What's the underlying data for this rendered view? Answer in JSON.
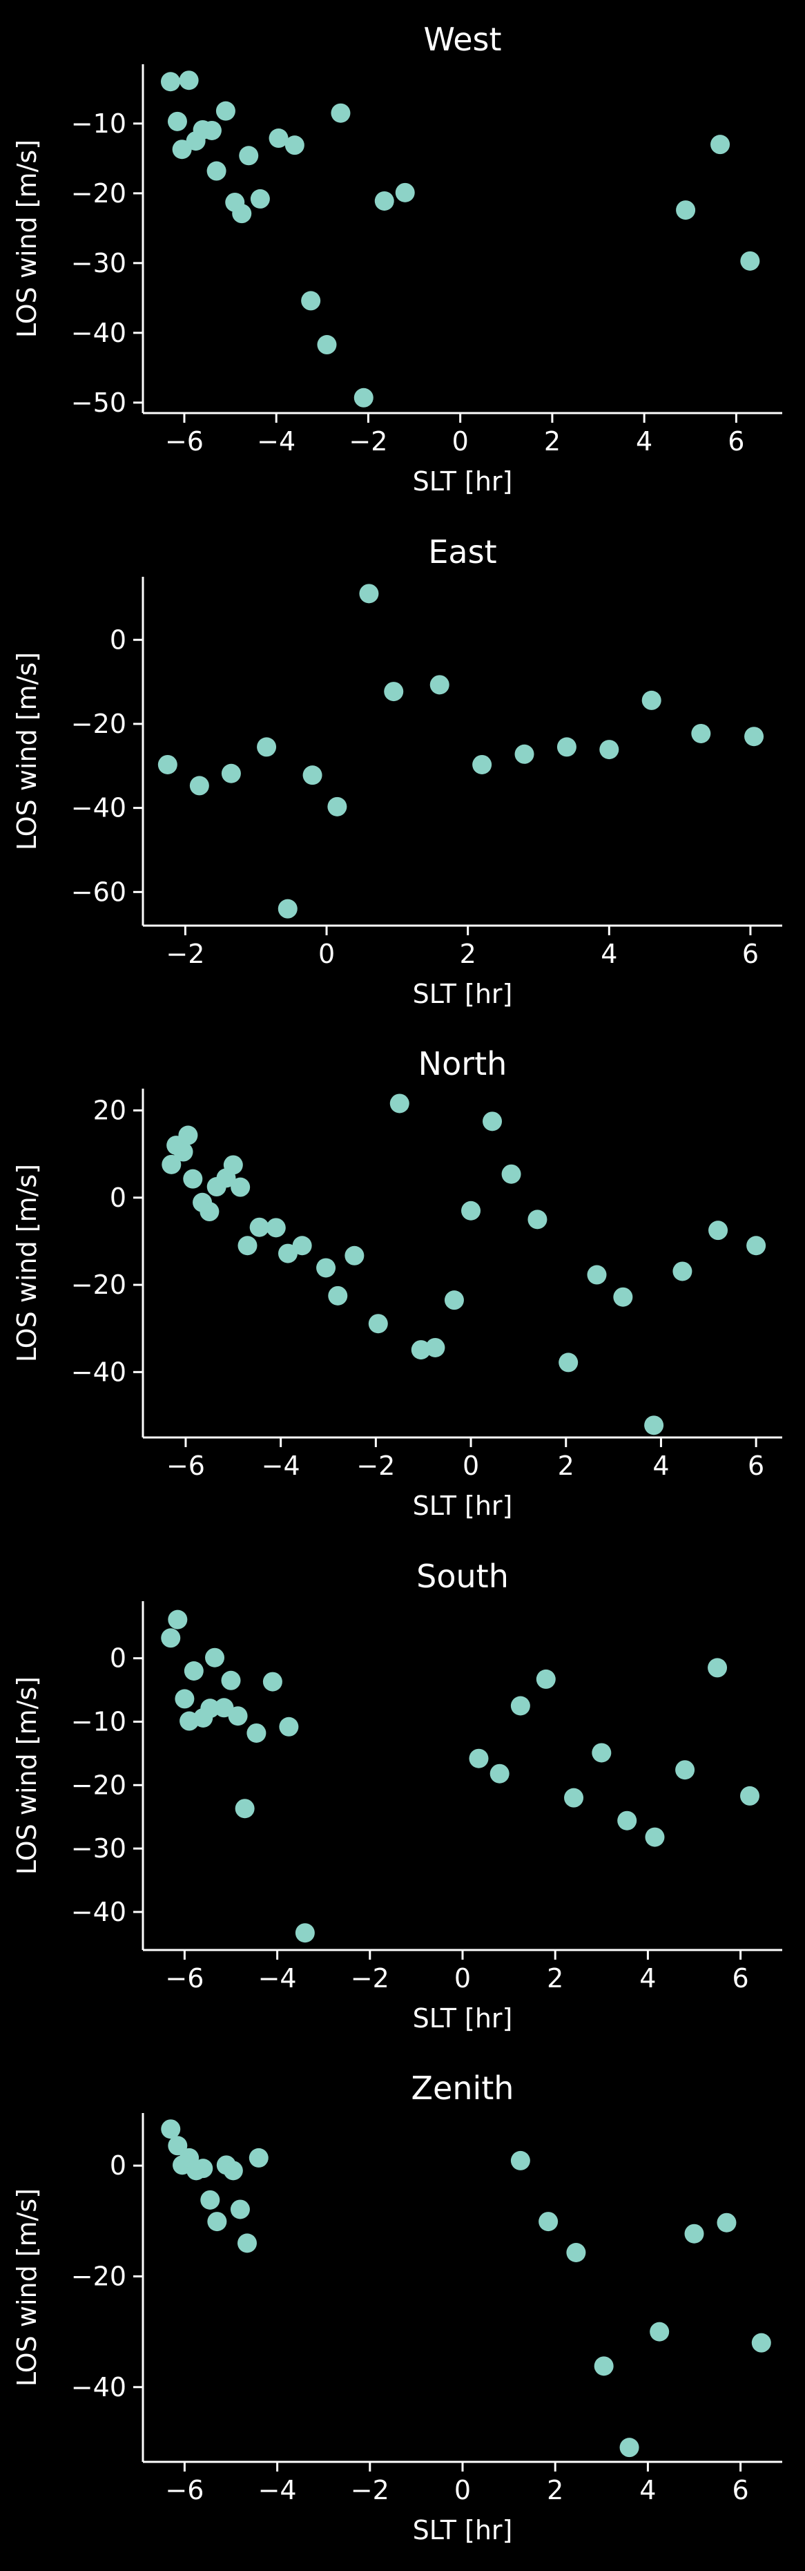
{
  "figure": {
    "background": "#000000",
    "foreground": "#ffffff",
    "marker_color": "#8dd3c7"
  },
  "chart_data": [
    {
      "type": "scatter",
      "title": "West",
      "xlabel": "SLT [hr]",
      "ylabel": "LOS wind [m/s]",
      "xlim": [
        -6.9,
        7.0
      ],
      "ylim": [
        -51.5,
        -1.5
      ],
      "xticks": [
        -6,
        -4,
        -2,
        0,
        2,
        4,
        6
      ],
      "yticks": [
        -10,
        -20,
        -30,
        -40,
        -50
      ],
      "grid": false,
      "points": [
        {
          "x": -6.3,
          "y": -4.0
        },
        {
          "x": -5.9,
          "y": -3.8
        },
        {
          "x": -6.15,
          "y": -9.7
        },
        {
          "x": -6.05,
          "y": -13.7
        },
        {
          "x": -5.75,
          "y": -12.5
        },
        {
          "x": -5.6,
          "y": -10.9
        },
        {
          "x": -5.4,
          "y": -11.0
        },
        {
          "x": -5.3,
          "y": -16.8
        },
        {
          "x": -5.1,
          "y": -8.2
        },
        {
          "x": -4.9,
          "y": -21.3
        },
        {
          "x": -4.75,
          "y": -22.9
        },
        {
          "x": -4.6,
          "y": -14.6
        },
        {
          "x": -4.35,
          "y": -20.8
        },
        {
          "x": -3.95,
          "y": -12.1
        },
        {
          "x": -3.6,
          "y": -13.1
        },
        {
          "x": -3.25,
          "y": -35.4
        },
        {
          "x": -2.9,
          "y": -41.7
        },
        {
          "x": -2.6,
          "y": -8.5
        },
        {
          "x": -2.1,
          "y": -49.3
        },
        {
          "x": -1.65,
          "y": -21.1
        },
        {
          "x": -1.2,
          "y": -19.9
        },
        {
          "x": 4.9,
          "y": -22.4
        },
        {
          "x": 5.65,
          "y": -13.0
        },
        {
          "x": 6.3,
          "y": -29.7
        }
      ]
    },
    {
      "type": "scatter",
      "title": "East",
      "xlabel": "SLT [hr]",
      "ylabel": "LOS wind [m/s]",
      "xlim": [
        -2.6,
        6.45
      ],
      "ylim": [
        -68,
        15
      ],
      "xticks": [
        -2,
        0,
        2,
        4,
        6
      ],
      "yticks": [
        0,
        -20,
        -40,
        -60
      ],
      "grid": false,
      "points": [
        {
          "x": -2.25,
          "y": -29.7
        },
        {
          "x": -1.8,
          "y": -34.7
        },
        {
          "x": -1.35,
          "y": -31.8
        },
        {
          "x": -0.85,
          "y": -25.5
        },
        {
          "x": -0.55,
          "y": -64.0
        },
        {
          "x": -0.2,
          "y": -32.2
        },
        {
          "x": 0.15,
          "y": -39.7
        },
        {
          "x": 0.6,
          "y": 11.0
        },
        {
          "x": 0.95,
          "y": -12.3
        },
        {
          "x": 1.6,
          "y": -10.7
        },
        {
          "x": 2.2,
          "y": -29.7
        },
        {
          "x": 2.8,
          "y": -27.2
        },
        {
          "x": 3.4,
          "y": -25.5
        },
        {
          "x": 4.0,
          "y": -26.1
        },
        {
          "x": 4.6,
          "y": -14.4
        },
        {
          "x": 5.3,
          "y": -22.3
        },
        {
          "x": 6.05,
          "y": -23.0
        }
      ]
    },
    {
      "type": "scatter",
      "title": "North",
      "xlabel": "SLT [hr]",
      "ylabel": "LOS wind [m/s]",
      "xlim": [
        -6.9,
        6.55
      ],
      "ylim": [
        -55,
        25
      ],
      "xticks": [
        -6,
        -4,
        -2,
        0,
        2,
        4,
        6
      ],
      "yticks": [
        20,
        0,
        -20,
        -40
      ],
      "grid": false,
      "points": [
        {
          "x": -6.3,
          "y": 7.6
        },
        {
          "x": -6.2,
          "y": 12.0
        },
        {
          "x": -6.05,
          "y": 10.5
        },
        {
          "x": -5.95,
          "y": 14.3
        },
        {
          "x": -5.85,
          "y": 4.3
        },
        {
          "x": -5.65,
          "y": -1.1
        },
        {
          "x": -5.5,
          "y": -3.2
        },
        {
          "x": -5.35,
          "y": 2.5
        },
        {
          "x": -5.15,
          "y": 4.5
        },
        {
          "x": -5.0,
          "y": 7.5
        },
        {
          "x": -4.85,
          "y": 2.4
        },
        {
          "x": -4.7,
          "y": -11.0
        },
        {
          "x": -4.45,
          "y": -6.8
        },
        {
          "x": -4.1,
          "y": -6.9
        },
        {
          "x": -3.85,
          "y": -12.8
        },
        {
          "x": -3.55,
          "y": -11.0
        },
        {
          "x": -3.05,
          "y": -16.1
        },
        {
          "x": -2.8,
          "y": -22.5
        },
        {
          "x": -2.45,
          "y": -13.3
        },
        {
          "x": -1.95,
          "y": -28.9
        },
        {
          "x": -1.5,
          "y": 21.6
        },
        {
          "x": -1.05,
          "y": -34.9
        },
        {
          "x": -0.75,
          "y": -34.4
        },
        {
          "x": -0.35,
          "y": -23.5
        },
        {
          "x": 0.0,
          "y": -3.0
        },
        {
          "x": 0.45,
          "y": 17.5
        },
        {
          "x": 0.85,
          "y": 5.4
        },
        {
          "x": 1.4,
          "y": -5.0
        },
        {
          "x": 2.05,
          "y": -37.8
        },
        {
          "x": 2.65,
          "y": -17.7
        },
        {
          "x": 3.2,
          "y": -22.8
        },
        {
          "x": 3.85,
          "y": -52.2
        },
        {
          "x": 4.45,
          "y": -16.9
        },
        {
          "x": 5.2,
          "y": -7.5
        },
        {
          "x": 6.0,
          "y": -11.0
        }
      ]
    },
    {
      "type": "scatter",
      "title": "South",
      "xlabel": "SLT [hr]",
      "ylabel": "LOS wind [m/s]",
      "xlim": [
        -6.9,
        6.9
      ],
      "ylim": [
        -46,
        9
      ],
      "xticks": [
        -6,
        -4,
        -2,
        0,
        2,
        4,
        6
      ],
      "yticks": [
        0,
        -10,
        -20,
        -30,
        -40
      ],
      "grid": false,
      "points": [
        {
          "x": -6.3,
          "y": 3.2
        },
        {
          "x": -6.15,
          "y": 6.1
        },
        {
          "x": -6.0,
          "y": -6.4
        },
        {
          "x": -5.9,
          "y": -9.9
        },
        {
          "x": -5.8,
          "y": -2.0
        },
        {
          "x": -5.6,
          "y": -9.4
        },
        {
          "x": -5.45,
          "y": -7.9
        },
        {
          "x": -5.35,
          "y": 0.1
        },
        {
          "x": -5.15,
          "y": -7.8
        },
        {
          "x": -5.0,
          "y": -3.5
        },
        {
          "x": -4.85,
          "y": -9.1
        },
        {
          "x": -4.7,
          "y": -23.7
        },
        {
          "x": -4.45,
          "y": -11.8
        },
        {
          "x": -4.1,
          "y": -3.7
        },
        {
          "x": -3.75,
          "y": -10.8
        },
        {
          "x": -3.4,
          "y": -43.3
        },
        {
          "x": 0.35,
          "y": -15.8
        },
        {
          "x": 0.8,
          "y": -18.2
        },
        {
          "x": 1.25,
          "y": -7.5
        },
        {
          "x": 1.8,
          "y": -3.3
        },
        {
          "x": 2.4,
          "y": -22.0
        },
        {
          "x": 3.0,
          "y": -14.9
        },
        {
          "x": 3.55,
          "y": -25.6
        },
        {
          "x": 4.15,
          "y": -28.2
        },
        {
          "x": 4.8,
          "y": -17.6
        },
        {
          "x": 5.5,
          "y": -1.5
        },
        {
          "x": 6.2,
          "y": -21.7
        }
      ]
    },
    {
      "type": "scatter",
      "title": "Zenith",
      "xlabel": "SLT [hr]",
      "ylabel": "LOS wind [m/s]",
      "xlim": [
        -6.9,
        6.9
      ],
      "ylim": [
        -53.5,
        9.5
      ],
      "xticks": [
        -6,
        -4,
        -2,
        0,
        2,
        4,
        6
      ],
      "yticks": [
        0,
        -20,
        -40
      ],
      "grid": false,
      "points": [
        {
          "x": -6.3,
          "y": 6.6
        },
        {
          "x": -6.15,
          "y": 3.6
        },
        {
          "x": -6.05,
          "y": 0.1
        },
        {
          "x": -5.9,
          "y": 1.4
        },
        {
          "x": -5.75,
          "y": -0.9
        },
        {
          "x": -5.6,
          "y": -0.5
        },
        {
          "x": -5.45,
          "y": -6.2
        },
        {
          "x": -5.3,
          "y": -10.1
        },
        {
          "x": -5.1,
          "y": 0.1
        },
        {
          "x": -4.95,
          "y": -0.9
        },
        {
          "x": -4.8,
          "y": -7.9
        },
        {
          "x": -4.65,
          "y": -14.0
        },
        {
          "x": -4.4,
          "y": 1.4
        },
        {
          "x": 1.25,
          "y": 0.9
        },
        {
          "x": 1.85,
          "y": -10.1
        },
        {
          "x": 2.45,
          "y": -15.7
        },
        {
          "x": 3.05,
          "y": -36.2
        },
        {
          "x": 3.6,
          "y": -50.9
        },
        {
          "x": 4.25,
          "y": -30.0
        },
        {
          "x": 5.0,
          "y": -12.3
        },
        {
          "x": 5.7,
          "y": -10.3
        },
        {
          "x": 6.45,
          "y": -32.0
        }
      ]
    }
  ]
}
